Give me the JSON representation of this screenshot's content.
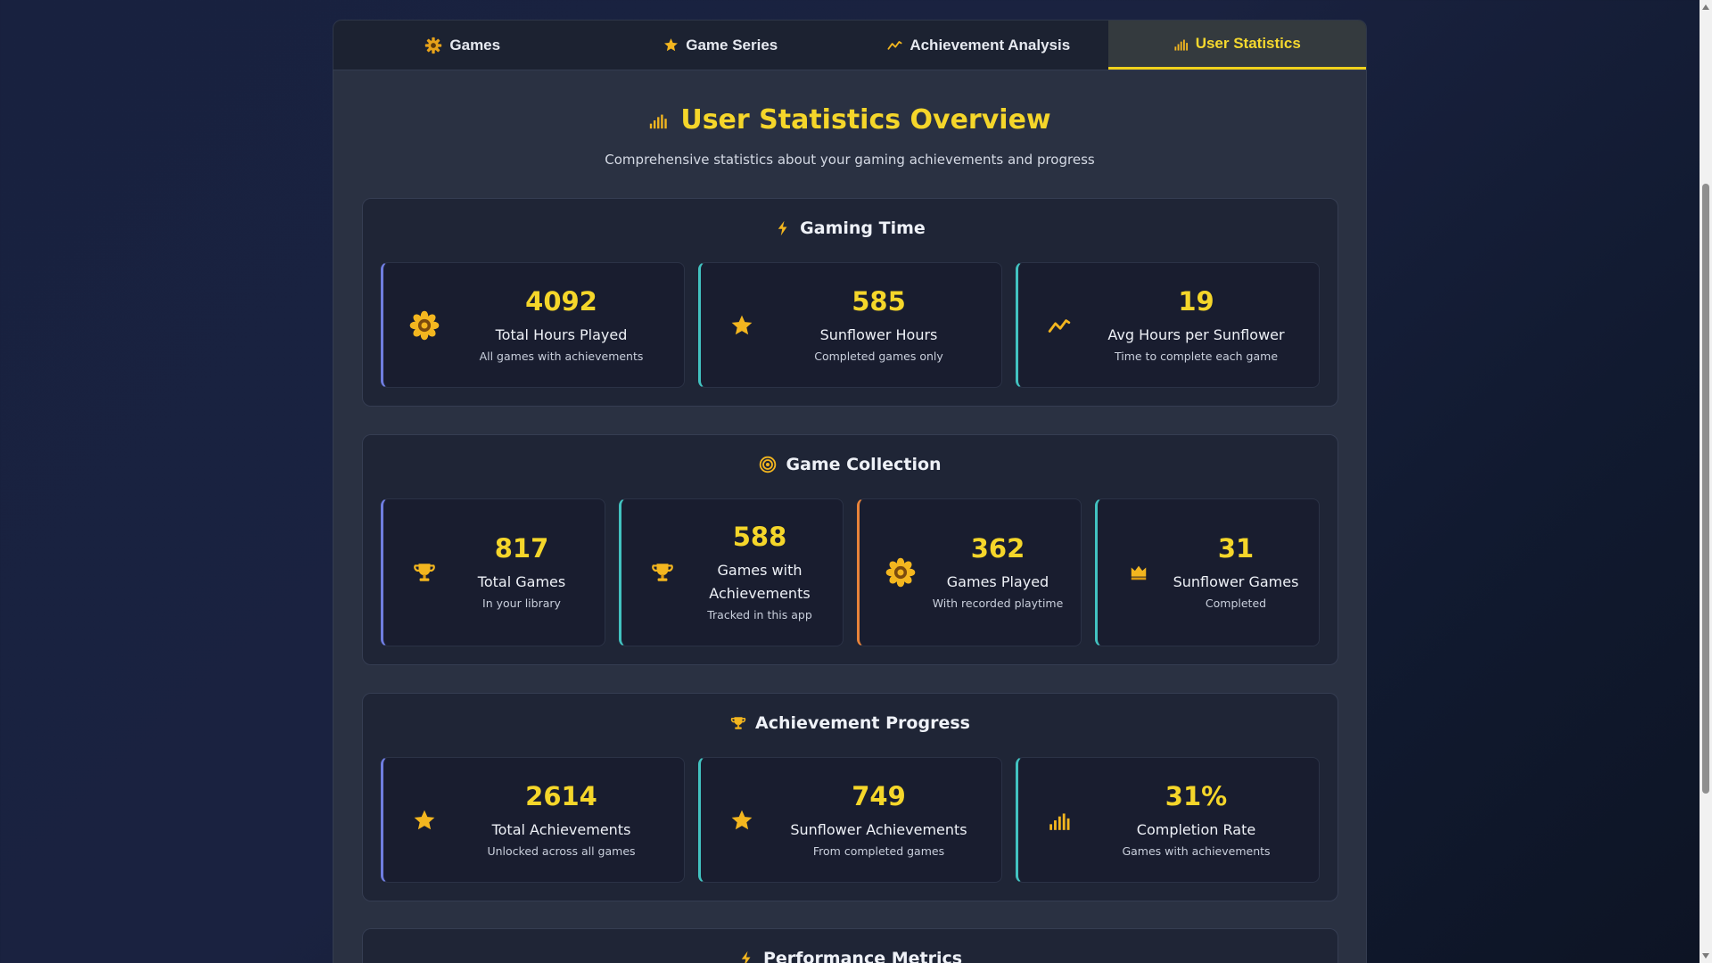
{
  "tabs": [
    {
      "label": "Games",
      "icon": "gear-icon",
      "active": false
    },
    {
      "label": "Game Series",
      "icon": "star-icon",
      "active": false
    },
    {
      "label": "Achievement Analysis",
      "icon": "trend-icon",
      "active": false
    },
    {
      "label": "User Statistics",
      "icon": "bar-chart-icon",
      "active": true
    }
  ],
  "overview": {
    "title": "User Statistics Overview",
    "subtitle": "Comprehensive statistics about your gaming achievements and progress",
    "icon": "bar-chart-icon"
  },
  "sections": {
    "gaming_time": {
      "title": "Gaming Time",
      "icon": "lightning-icon",
      "cards": [
        {
          "value": "4092",
          "label": "Total Hours Played",
          "sub": "All games with achievements",
          "icon": "sunflower-icon"
        },
        {
          "value": "585",
          "label": "Sunflower Hours",
          "sub": "Completed games only",
          "icon": "star-icon"
        },
        {
          "value": "19",
          "label": "Avg Hours per Sunflower",
          "sub": "Time to complete each game",
          "icon": "trend-icon"
        }
      ]
    },
    "game_collection": {
      "title": "Game Collection",
      "icon": "target-icon",
      "cards": [
        {
          "value": "817",
          "label": "Total Games",
          "sub": "In your library",
          "icon": "trophy-icon"
        },
        {
          "value": "588",
          "label": "Games with Achievements",
          "sub": "Tracked in this app",
          "icon": "trophy-icon"
        },
        {
          "value": "362",
          "label": "Games Played",
          "sub": "With recorded playtime",
          "icon": "sunflower-icon"
        },
        {
          "value": "31",
          "label": "Sunflower Games",
          "sub": "Completed",
          "icon": "crown-icon"
        }
      ]
    },
    "achievement_progress": {
      "title": "Achievement Progress",
      "icon": "trophy-icon",
      "cards": [
        {
          "value": "2614",
          "label": "Total Achievements",
          "sub": "Unlocked across all games",
          "icon": "star-icon"
        },
        {
          "value": "749",
          "label": "Sunflower Achievements",
          "sub": "From completed games",
          "icon": "star-icon"
        },
        {
          "value": "31%",
          "label": "Completion Rate",
          "sub": "Games with achievements",
          "icon": "bar-chart-icon"
        }
      ]
    },
    "performance_metrics": {
      "title": "Performance Metrics",
      "icon": "lightning-icon"
    }
  },
  "colors": {
    "accent": "#f5d62a",
    "icon_gold": "#f3b61f",
    "border_blue": "#6f7de0",
    "border_teal": "#42c2c0",
    "border_orange": "#e8833a"
  }
}
